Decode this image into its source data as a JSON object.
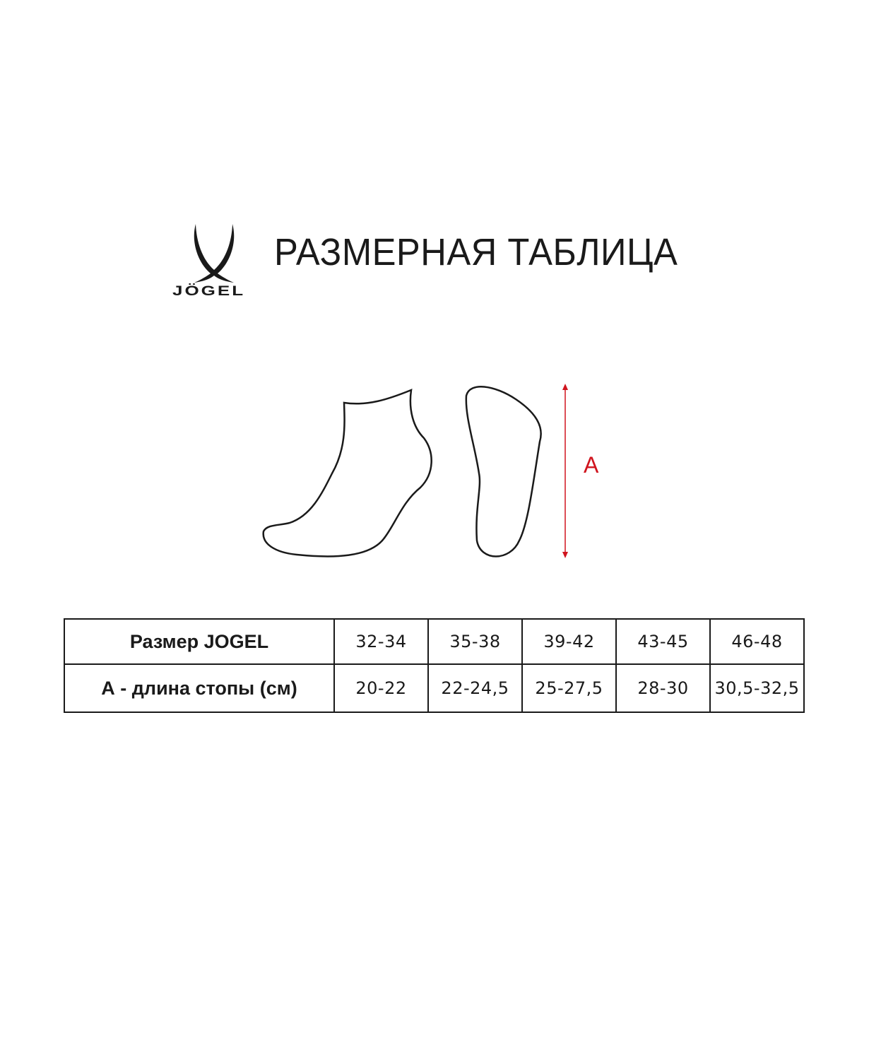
{
  "brand": {
    "logo_text": "JÖGEL"
  },
  "title": "РАЗМЕРНАЯ ТАБЛИЦА",
  "diagram": {
    "measure_label": "A",
    "arrow_color": "#d0141e"
  },
  "table": {
    "rows": [
      {
        "label": "Размер JOGEL",
        "values": [
          "32-34",
          "35-38",
          "39-42",
          "43-45",
          "46-48"
        ]
      },
      {
        "label": "А - длина стопы (см)",
        "values": [
          "20-22",
          "22-24,5",
          "25-27,5",
          "28-30",
          "30,5-32,5"
        ]
      }
    ]
  }
}
